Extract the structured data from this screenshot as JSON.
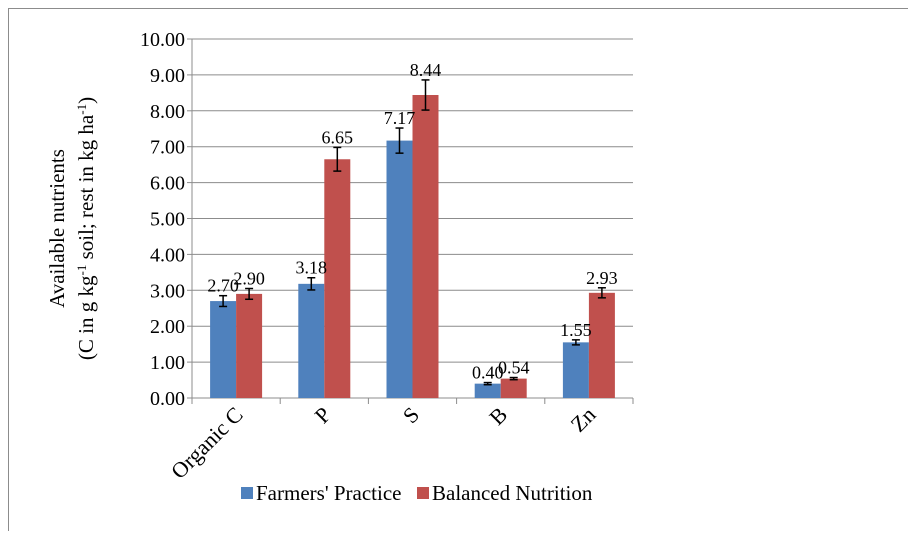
{
  "chart_data": {
    "type": "bar",
    "ylabel_line1": "Available nutrients",
    "ylabel_line2_parts": [
      "(C in g kg",
      "-1",
      " soil; rest in kg ha",
      "-1",
      ")"
    ],
    "categories": [
      "Organic C",
      "P",
      "S",
      "B",
      "Zn"
    ],
    "series": [
      {
        "name": "Farmers' Practice",
        "color": "#4f81bd",
        "values": [
          2.7,
          3.18,
          7.17,
          0.4,
          1.55
        ],
        "errors": [
          0.15,
          0.17,
          0.35,
          0.03,
          0.07
        ],
        "labels": [
          "2.70",
          "3.18",
          "7.17",
          "0.40",
          "1.55"
        ]
      },
      {
        "name": "Balanced Nutrition",
        "color": "#c0504d",
        "values": [
          2.9,
          6.65,
          8.44,
          0.54,
          2.93
        ],
        "errors": [
          0.15,
          0.33,
          0.42,
          0.03,
          0.14
        ],
        "labels": [
          "2.90",
          "6.65",
          "8.44",
          "0.54",
          "2.93"
        ]
      }
    ],
    "ylim": [
      0,
      10
    ],
    "yticks": [
      "0.00",
      "1.00",
      "2.00",
      "3.00",
      "4.00",
      "5.00",
      "6.00",
      "7.00",
      "8.00",
      "9.00",
      "10.00"
    ],
    "grid": true,
    "legend_position": "bottom"
  }
}
